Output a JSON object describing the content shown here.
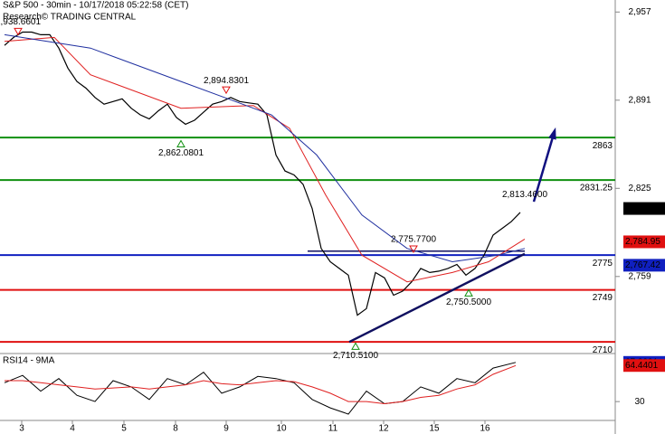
{
  "header": {
    "title": "S&P 500 - 30min - 10/17/2018 05:22:58 (CET)",
    "source": "Research© TRADING CENTRAL"
  },
  "chart_data": [
    {
      "type": "line",
      "xlim": [
        0,
        67.5
      ],
      "ylim": [
        2702,
        2966
      ],
      "yticks": [
        {
          "value": 2957,
          "label": "2,957"
        },
        {
          "value": 2891,
          "label": "2,891"
        },
        {
          "value": 2825,
          "label": "2,825"
        },
        {
          "value": 2759,
          "label": "2,759"
        }
      ],
      "series": [
        {
          "color": "#000000",
          "x": [
            0,
            1,
            2,
            3,
            4,
            5,
            6,
            7,
            8,
            9,
            10,
            11,
            12,
            13,
            14,
            15,
            16,
            17,
            18,
            19,
            20,
            21,
            22,
            23,
            24,
            25,
            26,
            27,
            28,
            29,
            30,
            31,
            32,
            33,
            34,
            35,
            36,
            37,
            38,
            39,
            40,
            41,
            42,
            43,
            44,
            45,
            46,
            47,
            48,
            49,
            50,
            51,
            52,
            53,
            54,
            55,
            56,
            57
          ],
          "values": [
            2932,
            2938,
            2942,
            2942,
            2940,
            2940,
            2930,
            2915,
            2905,
            2900,
            2893,
            2888,
            2890,
            2892,
            2885,
            2880,
            2877,
            2883,
            2888,
            2878,
            2873,
            2876,
            2882,
            2888,
            2890,
            2893,
            2890,
            2889,
            2888,
            2880,
            2850,
            2838,
            2835,
            2828,
            2810,
            2780,
            2770,
            2765,
            2760,
            2730,
            2735,
            2762,
            2758,
            2745,
            2748,
            2755,
            2765,
            2762,
            2763,
            2765,
            2768,
            2760,
            2765,
            2775,
            2790,
            2795,
            2800,
            2807
          ]
        },
        {
          "color": "#e02020",
          "x": [
            0,
            5.5,
            9.5,
            19.5,
            27.5,
            31.5,
            35.5,
            39.5,
            44.5,
            49.5,
            53.5,
            57.5
          ],
          "values": [
            2935,
            2938,
            2910,
            2885,
            2887,
            2870,
            2820,
            2775,
            2755,
            2762,
            2770,
            2787
          ]
        },
        {
          "color": "#2030a0",
          "x": [
            0,
            9.5,
            19.5,
            29.5,
            34.5,
            39.5,
            44.5,
            49.5,
            54.5,
            57.5
          ],
          "values": [
            2940,
            2930,
            2905,
            2880,
            2850,
            2805,
            2780,
            2770,
            2775,
            2780
          ]
        }
      ],
      "levels": [
        {
          "value": 2863,
          "color": "#109010"
        },
        {
          "value": 2831.25,
          "color": "#109010"
        },
        {
          "value": 2775,
          "color": "#1020c0"
        },
        {
          "value": 2749,
          "color": "#e01010"
        },
        {
          "value": 2710,
          "color": "#e01010"
        }
      ],
      "value_boxes": [
        {
          "value": 2809.92,
          "label": "2,809.92",
          "color": "#000000"
        },
        {
          "value": 2784.95,
          "label": "2,784.95",
          "color": "#e01010"
        },
        {
          "value": 2767.42,
          "label": "2,767.42",
          "color": "#1020c0"
        }
      ],
      "annotations": [
        {
          "x": 1.5,
          "value": 2938.6601,
          "label": "2,938.6601",
          "dir": "down"
        },
        {
          "x": 24.5,
          "value": 2894.8301,
          "label": "2,894.8301",
          "dir": "down"
        },
        {
          "x": 19.5,
          "value": 2862.0801,
          "label": "2,862.0801",
          "dir": "up"
        },
        {
          "x": 45.2,
          "value": 2775.77,
          "label": "2,775.7700",
          "dir": "down"
        },
        {
          "x": 57.5,
          "value": 2813.46,
          "label": "2,813.4600",
          "dir": "none"
        },
        {
          "x": 51.3,
          "value": 2750.5,
          "label": "2,750.5000",
          "dir": "up"
        },
        {
          "x": 38.8,
          "value": 2710.51,
          "label": "2,710.5100",
          "dir": "up"
        }
      ],
      "trendlines": [
        {
          "x": [
            38.1,
            57.5
          ],
          "y": [
            2710,
            2776
          ],
          "color": "#101060"
        },
        {
          "x": [
            33.5,
            57.5
          ],
          "y": [
            2778,
            2778
          ],
          "color": "#101060"
        }
      ],
      "arrow": {
        "x": [
          58.5,
          60.8
        ],
        "y": [
          2815,
          2868
        ],
        "color": "#101080"
      }
    },
    {
      "type": "line",
      "title": "RSI14 - 9MA",
      "xlim": [
        0,
        67.5
      ],
      "ylim": [
        12,
        75
      ],
      "yticks": [
        30
      ],
      "xticks": [
        {
          "value": 1.9,
          "label": "3"
        },
        {
          "value": 7.5,
          "label": "4"
        },
        {
          "value": 13.2,
          "label": "5"
        },
        {
          "value": 18.9,
          "label": "8"
        },
        {
          "value": 24.5,
          "label": "9"
        },
        {
          "value": 30.6,
          "label": "10"
        },
        {
          "value": 36.3,
          "label": "11"
        },
        {
          "value": 41.9,
          "label": "12"
        },
        {
          "value": 47.5,
          "label": "15"
        },
        {
          "value": 53.1,
          "label": "16"
        }
      ],
      "series": [
        {
          "color": "#000000",
          "x": [
            0,
            2,
            4,
            6,
            8,
            10,
            12,
            14,
            16,
            18,
            20,
            22,
            24,
            26,
            28,
            30,
            32,
            34,
            36,
            38,
            40,
            42,
            44,
            46,
            48,
            50,
            52,
            54,
            56.5
          ],
          "values": [
            48,
            55,
            40,
            52,
            36,
            30,
            50,
            44,
            32,
            52,
            46,
            58,
            38,
            44,
            54,
            52,
            48,
            32,
            24,
            18,
            40,
            28,
            30,
            44,
            38,
            52,
            48,
            62,
            67.4
          ]
        },
        {
          "color": "#e02020",
          "x": [
            0,
            2,
            4,
            6,
            8,
            10,
            12,
            14,
            16,
            18,
            20,
            22,
            24,
            26,
            28,
            30,
            32,
            34,
            36,
            38,
            40,
            42,
            44,
            46,
            48,
            50,
            52,
            54,
            56.5
          ],
          "values": [
            50,
            50,
            48,
            46,
            44,
            42,
            43,
            44,
            42,
            44,
            46,
            50,
            47,
            46,
            48,
            50,
            49,
            44,
            38,
            30,
            30,
            28,
            30,
            34,
            36,
            42,
            46,
            56,
            64.4
          ]
        }
      ],
      "value_boxes": [
        {
          "value": 67.3991,
          "label": "67.3991",
          "color": "#1020c0"
        },
        {
          "value": 64.4401,
          "label": "64.4401",
          "color": "#e01010"
        }
      ]
    }
  ]
}
